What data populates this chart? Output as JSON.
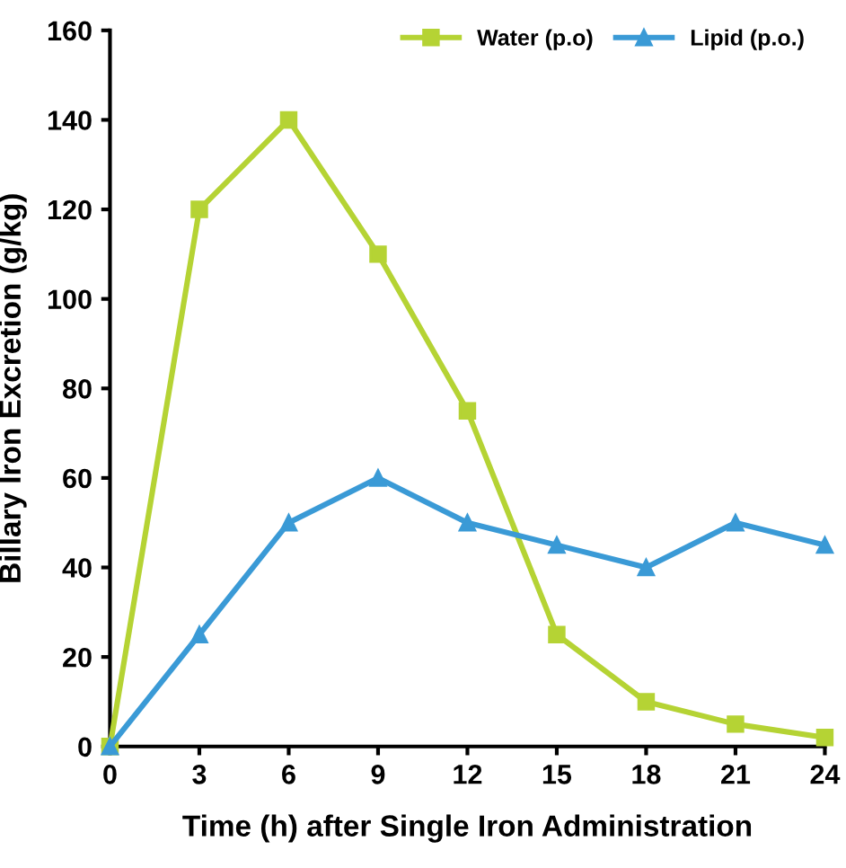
{
  "chart_data": {
    "type": "line",
    "xlabel": "Time (h) after Single Iron Administration",
    "ylabel": "Billary Iron Excretion (g/kg)",
    "x": [
      0,
      3,
      6,
      9,
      12,
      15,
      18,
      21,
      24
    ],
    "series": [
      {
        "name": "Water (p.o)",
        "color": "#b5d334",
        "marker": "square",
        "values": [
          0,
          120,
          140,
          110,
          75,
          25,
          10,
          5,
          2
        ]
      },
      {
        "name": "Lipid (p.o.)",
        "color": "#3a9ad6",
        "marker": "triangle",
        "values": [
          0,
          25,
          50,
          60,
          50,
          45,
          40,
          50,
          45
        ]
      }
    ],
    "xlim": [
      0,
      24
    ],
    "xticks": [
      0,
      3,
      6,
      9,
      12,
      15,
      18,
      21,
      24
    ],
    "ylim": [
      0,
      160
    ],
    "yticks": [
      0,
      20,
      40,
      60,
      80,
      100,
      120,
      140,
      160
    ],
    "grid": false,
    "legend": "top right",
    "line_style": "solid"
  }
}
